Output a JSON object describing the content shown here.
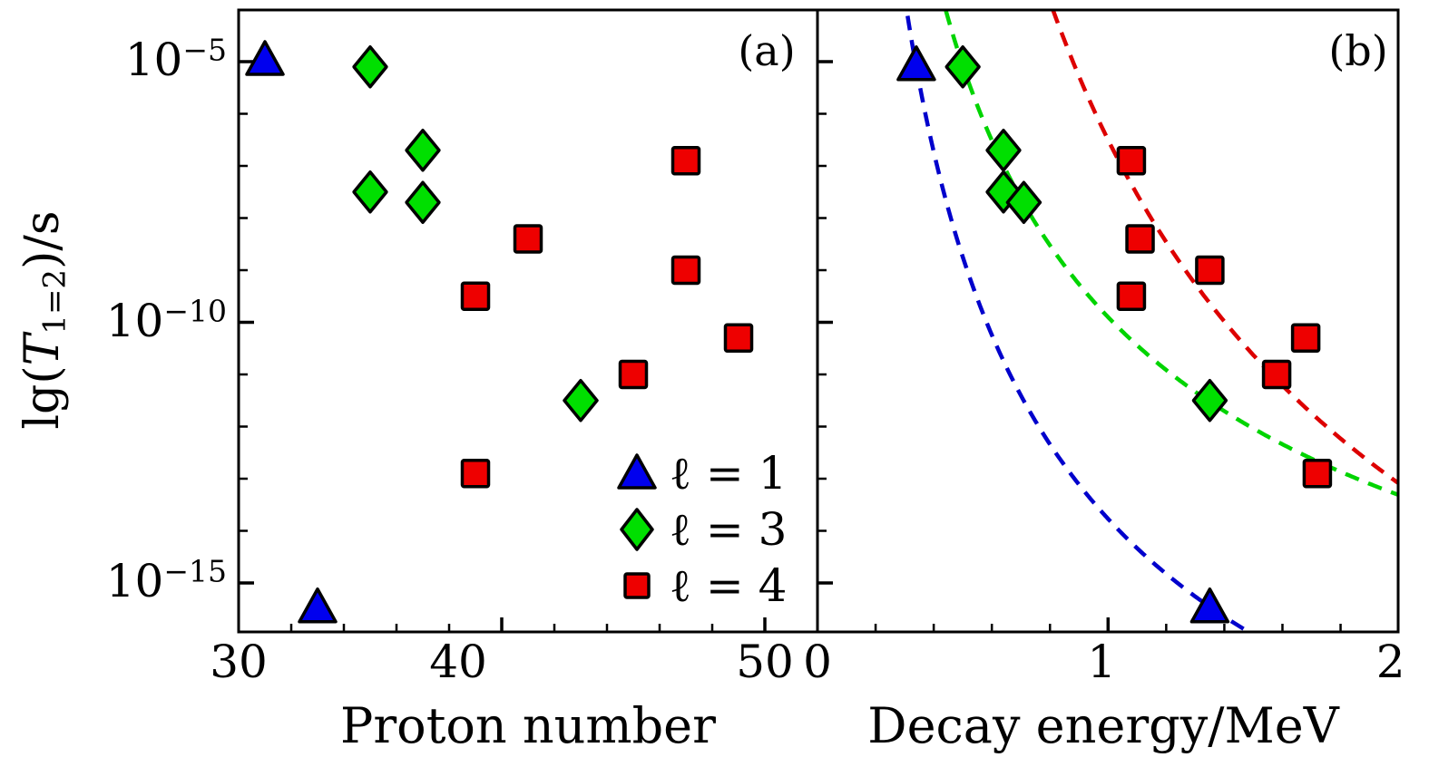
{
  "figure": {
    "background": "#ffffff",
    "description": "Two-panel log-scale scatter figure of proton-emission half-lives"
  },
  "panels": {
    "a_label": "(a)",
    "b_label": "(b)"
  },
  "axes": {
    "ylabel_prefix": "lg(",
    "ylabel_symbol": "T",
    "ylabel_sub": "1=2",
    "ylabel_suffix": ")/s",
    "xlabel_a": "Proton number",
    "xlabel_b": "Decay energy/MeV"
  },
  "legend": {
    "items": [
      {
        "label": "ℓ = 1",
        "marker": "triangle",
        "color": "#0000EE"
      },
      {
        "label": "ℓ = 3",
        "marker": "diamond",
        "color": "#00DF00"
      },
      {
        "label": "ℓ = 4",
        "marker": "square",
        "color": "#EE0000"
      }
    ]
  },
  "colors": {
    "axis": "#000000",
    "marker_outline": "#000000",
    "l1": "#0000EE",
    "l3": "#00DF00",
    "l4": "#EE0000",
    "curve_l1": "#0000CC",
    "curve_l3": "#00D400",
    "curve_l4": "#DD0000"
  },
  "chart_data": {
    "type": "scatter",
    "y_axis": {
      "label": "lg(T_{1=2})/s",
      "scale": "log",
      "tick_base": "10",
      "ticks_major_exponents": [
        -5,
        -10,
        -15
      ],
      "ticks_minor_exponents": [
        -6,
        -7,
        -8,
        -9,
        -11,
        -12,
        -13,
        -14
      ],
      "range_exponents": [
        -4,
        -16
      ]
    },
    "panels": [
      {
        "id": "a",
        "corner_label": "(a)",
        "xlabel": "Proton number",
        "xlim": [
          30,
          52
        ],
        "x_ticks_major": [
          40,
          50
        ],
        "x_ticks_minor": [
          32,
          34,
          36,
          38,
          42,
          44,
          46,
          48
        ],
        "x_tick_labels": [
          {
            "value": 30,
            "text": "30"
          },
          {
            "value": 40,
            "text": "40"
          },
          {
            "value": 50,
            "text": "50"
          }
        ],
        "series": [
          {
            "name": "ℓ = 1",
            "marker": "triangle",
            "points": [
              [
                31,
                -5.0
              ],
              [
                33,
                -15.5
              ]
            ]
          },
          {
            "name": "ℓ = 3",
            "marker": "diamond",
            "points": [
              [
                35,
                -5.1
              ],
              [
                37,
                -6.7
              ],
              [
                35,
                -7.5
              ],
              [
                37,
                -7.7
              ],
              [
                43,
                -11.5
              ]
            ]
          },
          {
            "name": "ℓ = 4",
            "marker": "square",
            "points": [
              [
                47,
                -6.9
              ],
              [
                41,
                -8.4
              ],
              [
                47,
                -9.0
              ],
              [
                39,
                -9.5
              ],
              [
                49,
                -10.3
              ],
              [
                45,
                -11.0
              ],
              [
                39,
                -12.9
              ]
            ]
          }
        ],
        "curves": []
      },
      {
        "id": "b",
        "corner_label": "(b)",
        "xlabel": "Decay energy/MeV",
        "xlim": [
          0,
          2
        ],
        "x_ticks_major": [
          1.0
        ],
        "x_ticks_minor": [
          0.2,
          0.4,
          0.6,
          0.8,
          1.2,
          1.4,
          1.6,
          1.8
        ],
        "x_tick_labels": [
          {
            "value": 0,
            "text": "0"
          },
          {
            "value": 1,
            "text": "1"
          },
          {
            "value": 2,
            "text": "2"
          }
        ],
        "series": [
          {
            "name": "ℓ = 1",
            "marker": "triangle",
            "points": [
              [
                0.34,
                -5.1
              ],
              [
                1.35,
                -15.5
              ]
            ]
          },
          {
            "name": "ℓ = 3",
            "marker": "diamond",
            "points": [
              [
                0.5,
                -5.1
              ],
              [
                0.64,
                -6.7
              ],
              [
                0.64,
                -7.5
              ],
              [
                0.71,
                -7.7
              ],
              [
                1.35,
                -11.5
              ]
            ]
          },
          {
            "name": "ℓ = 4",
            "marker": "square",
            "points": [
              [
                1.08,
                -6.9
              ],
              [
                1.11,
                -8.4
              ],
              [
                1.08,
                -9.5
              ],
              [
                1.35,
                -9.0
              ],
              [
                1.68,
                -10.3
              ],
              [
                1.58,
                -11.0
              ],
              [
                1.72,
                -12.9
              ]
            ]
          }
        ],
        "curves": [
          {
            "series": "ℓ = 1",
            "style": "dashed",
            "model": "lgT = a/sqrt(E) + b",
            "a": 12.12,
            "b": -25.89,
            "E_range": [
              0.305,
              1.49
            ]
          },
          {
            "series": "ℓ = 3",
            "style": "dashed",
            "model": "lgT = a/sqrt(E) + b",
            "a": 11.65,
            "b": -21.55,
            "E_range": [
              0.437,
              2.0
            ]
          },
          {
            "series": "ℓ = 4",
            "style": "dashed",
            "model": "lgT = a/sqrt(E) + b",
            "a": 22.5,
            "b": -29.0,
            "E_range": [
              0.805,
              2.0
            ]
          }
        ]
      }
    ]
  }
}
